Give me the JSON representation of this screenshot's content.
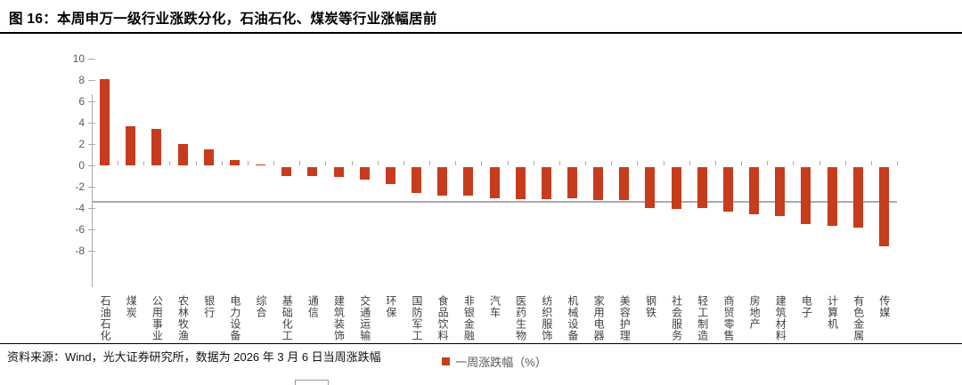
{
  "figure": {
    "title": "图 16：本周申万一级行业涨跌分化，石油石化、煤炭等行业涨幅居前",
    "source": "资料来源：Wind，光大证券研究所，数据为 2026 年 3 月 6 日当周涨跌幅"
  },
  "legend": {
    "label": "一周涨跌幅（%）",
    "marker_color": "#c63c1c"
  },
  "chart_data": {
    "type": "bar",
    "title": "本周申万一级行业一周涨跌幅（%）",
    "categories": [
      "石油石化",
      "煤炭",
      "公用事业",
      "农林牧渔",
      "银行",
      "电力设备",
      "综合",
      "基础化工",
      "通信",
      "建筑装饰",
      "交通运输",
      "环保",
      "国防军工",
      "食品饮料",
      "非银金融",
      "汽车",
      "医药生物",
      "纺织服饰",
      "机械设备",
      "家用电器",
      "美容护理",
      "钢铁",
      "社会服务",
      "轻工制造",
      "商贸零售",
      "房地产",
      "建筑材料",
      "电子",
      "计算机",
      "有色金属",
      "传媒"
    ],
    "values": [
      8.1,
      3.7,
      3.4,
      2.0,
      1.5,
      0.5,
      0.1,
      -0.8,
      -0.8,
      -0.9,
      -1.2,
      -1.6,
      -2.4,
      -2.7,
      -2.7,
      -2.9,
      -3.0,
      -3.0,
      -2.9,
      -3.1,
      -3.1,
      -3.8,
      -3.9,
      -3.8,
      -4.2,
      -4.4,
      -4.6,
      -5.3,
      -5.5,
      -5.7,
      -7.4
    ],
    "xlabel": "",
    "ylabel": "",
    "ylim": [
      -8,
      10
    ],
    "ytick_step": 2,
    "yticks": [
      10,
      8,
      6,
      4,
      2,
      0,
      -2,
      -4,
      -6,
      -8
    ],
    "bar_color": "#c63c1c",
    "grid": false,
    "legend_entries": [
      "一周涨跌幅（%）"
    ],
    "legend_position": "bottom-center"
  }
}
